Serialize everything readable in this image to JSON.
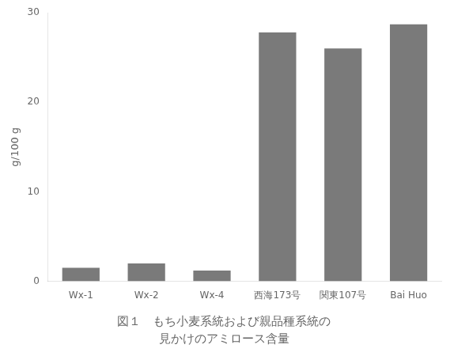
{
  "chart_data": {
    "type": "bar",
    "title": "図１　もち小麦系統および親品種系統の",
    "subtitle": "見かけのアミロース含量",
    "categories": [
      "Wx-1",
      "Wx-2",
      "Wx-4",
      "西海173号",
      "関東107号",
      "Bai Huo"
    ],
    "values": [
      1.5,
      2.0,
      1.2,
      27.8,
      26.0,
      28.7
    ],
    "color": "#7a7a7a",
    "ylabel": "g/100 g",
    "ylim": [
      0,
      30
    ],
    "yticks": [
      0,
      10,
      20,
      30
    ],
    "grid": false
  }
}
